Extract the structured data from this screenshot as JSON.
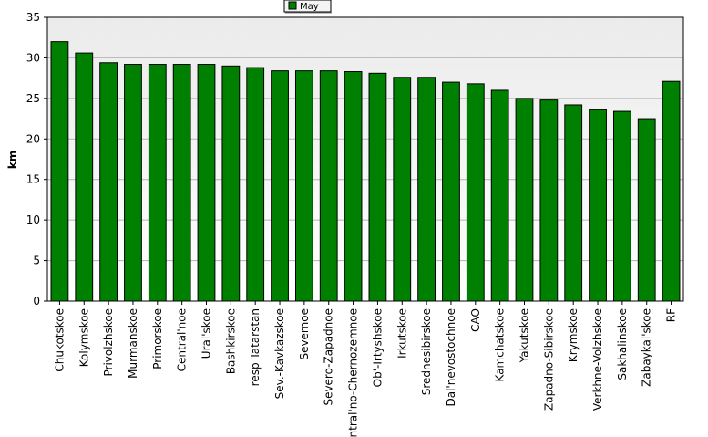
{
  "chart_data": {
    "type": "bar",
    "ylabel": "km",
    "ylim": [
      0,
      35
    ],
    "yticks": [
      0,
      5,
      10,
      15,
      20,
      25,
      30,
      35
    ],
    "grid": true,
    "legend_position": "top-center",
    "colors": {
      "bar": "#008000",
      "bar_stroke": "#000000",
      "plot_bg_upper": "#ebebeb",
      "grid": "#b4b4b4"
    },
    "categories": [
      "Chukotskoe",
      "Kolymskoe",
      "Privolzhskoe",
      "Murmanskoe",
      "Primorskoe",
      "Central'noe",
      "Ural'skoe",
      "Bashkirskoe",
      "resp Tatarstan",
      "Sev.-Kavkazskoe",
      "Severnoe",
      "Severo-Zapadnoe",
      "Central'no-Chernozemnoe",
      "Ob'-Irtyshskoe",
      "Irkutskoe",
      "Srednesibirskoe",
      "Dal'nevostochnoe",
      "CAO",
      "Kamchatskoe",
      "Yakutskoe",
      "Zapadno-Sibirskoe",
      "Krymskoe",
      "Verkhne-Volzhskoe",
      "Sakhalinskoe",
      "Zabaykal'skoe",
      "RF"
    ],
    "series": [
      {
        "name": "May",
        "values": [
          32.0,
          30.6,
          29.4,
          29.2,
          29.2,
          29.2,
          29.2,
          29.0,
          28.8,
          28.4,
          28.4,
          28.4,
          28.3,
          28.1,
          27.6,
          27.6,
          27.0,
          26.8,
          26.0,
          25.0,
          24.8,
          24.2,
          23.6,
          23.4,
          22.5,
          27.1
        ]
      }
    ]
  }
}
